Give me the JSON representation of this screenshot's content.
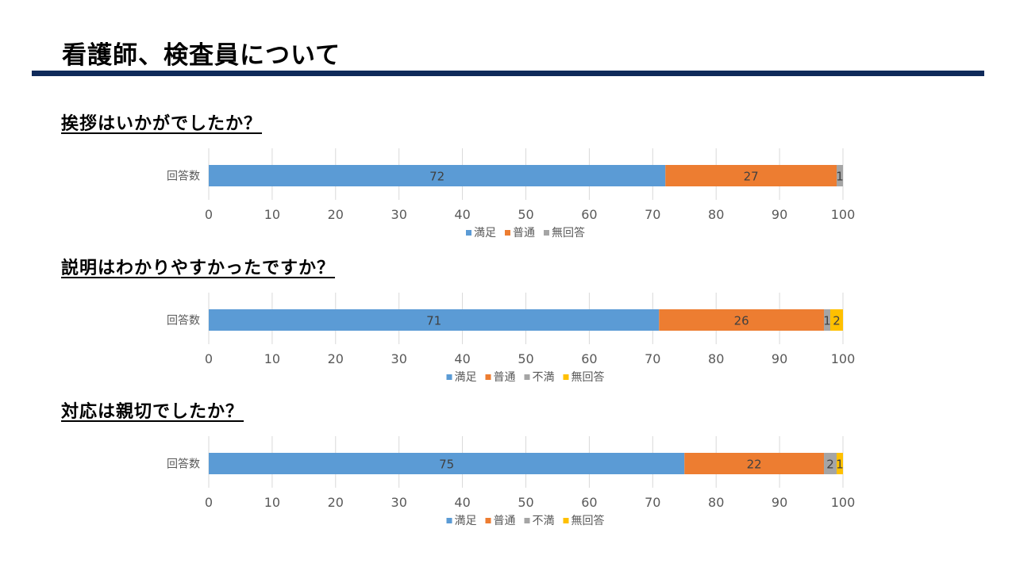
{
  "page": {
    "title": "看護師、検査員について"
  },
  "questions": [
    {
      "heading": "挨拶はいかがでしたか？"
    },
    {
      "heading": "説明はわかりやすかったですか？"
    },
    {
      "heading": "対応は親切でしたか？"
    }
  ],
  "colors": {
    "満足": "#5b9bd5",
    "普通": "#ed7d31",
    "不満": "#a5a5a5",
    "無回答_gray": "#a5a5a5",
    "無回答_yellow": "#ffc000",
    "grid": "#d9d9d9",
    "title_rule": "#0f2a5a"
  },
  "chart_data": [
    {
      "type": "bar",
      "orientation": "horizontal",
      "stacked": true,
      "categories": [
        "回答数"
      ],
      "series": [
        {
          "name": "満足",
          "values": [
            72
          ],
          "color": "#5b9bd5"
        },
        {
          "name": "普通",
          "values": [
            27
          ],
          "color": "#ed7d31"
        },
        {
          "name": "無回答",
          "values": [
            1
          ],
          "color": "#a5a5a5"
        }
      ],
      "xlim": [
        0,
        100
      ],
      "xticks": [
        "0",
        "10",
        "20",
        "30",
        "40",
        "50",
        "60",
        "70",
        "80",
        "90",
        "100"
      ],
      "grid": true,
      "legend": "bottom"
    },
    {
      "type": "bar",
      "orientation": "horizontal",
      "stacked": true,
      "categories": [
        "回答数"
      ],
      "series": [
        {
          "name": "満足",
          "values": [
            71
          ],
          "color": "#5b9bd5"
        },
        {
          "name": "普通",
          "values": [
            26
          ],
          "color": "#ed7d31"
        },
        {
          "name": "不満",
          "values": [
            1
          ],
          "color": "#a5a5a5"
        },
        {
          "name": "無回答",
          "values": [
            2
          ],
          "color": "#ffc000"
        }
      ],
      "xlim": [
        0,
        100
      ],
      "xticks": [
        "0",
        "10",
        "20",
        "30",
        "40",
        "50",
        "60",
        "70",
        "80",
        "90",
        "100"
      ],
      "grid": true,
      "legend": "bottom"
    },
    {
      "type": "bar",
      "orientation": "horizontal",
      "stacked": true,
      "categories": [
        "回答数"
      ],
      "series": [
        {
          "name": "満足",
          "values": [
            75
          ],
          "color": "#5b9bd5"
        },
        {
          "name": "普通",
          "values": [
            22
          ],
          "color": "#ed7d31"
        },
        {
          "name": "不満",
          "values": [
            2
          ],
          "color": "#a5a5a5"
        },
        {
          "name": "無回答",
          "values": [
            1
          ],
          "color": "#ffc000"
        }
      ],
      "xlim": [
        0,
        100
      ],
      "xticks": [
        "0",
        "10",
        "20",
        "30",
        "40",
        "50",
        "60",
        "70",
        "80",
        "90",
        "100"
      ],
      "grid": true,
      "legend": "bottom"
    }
  ]
}
